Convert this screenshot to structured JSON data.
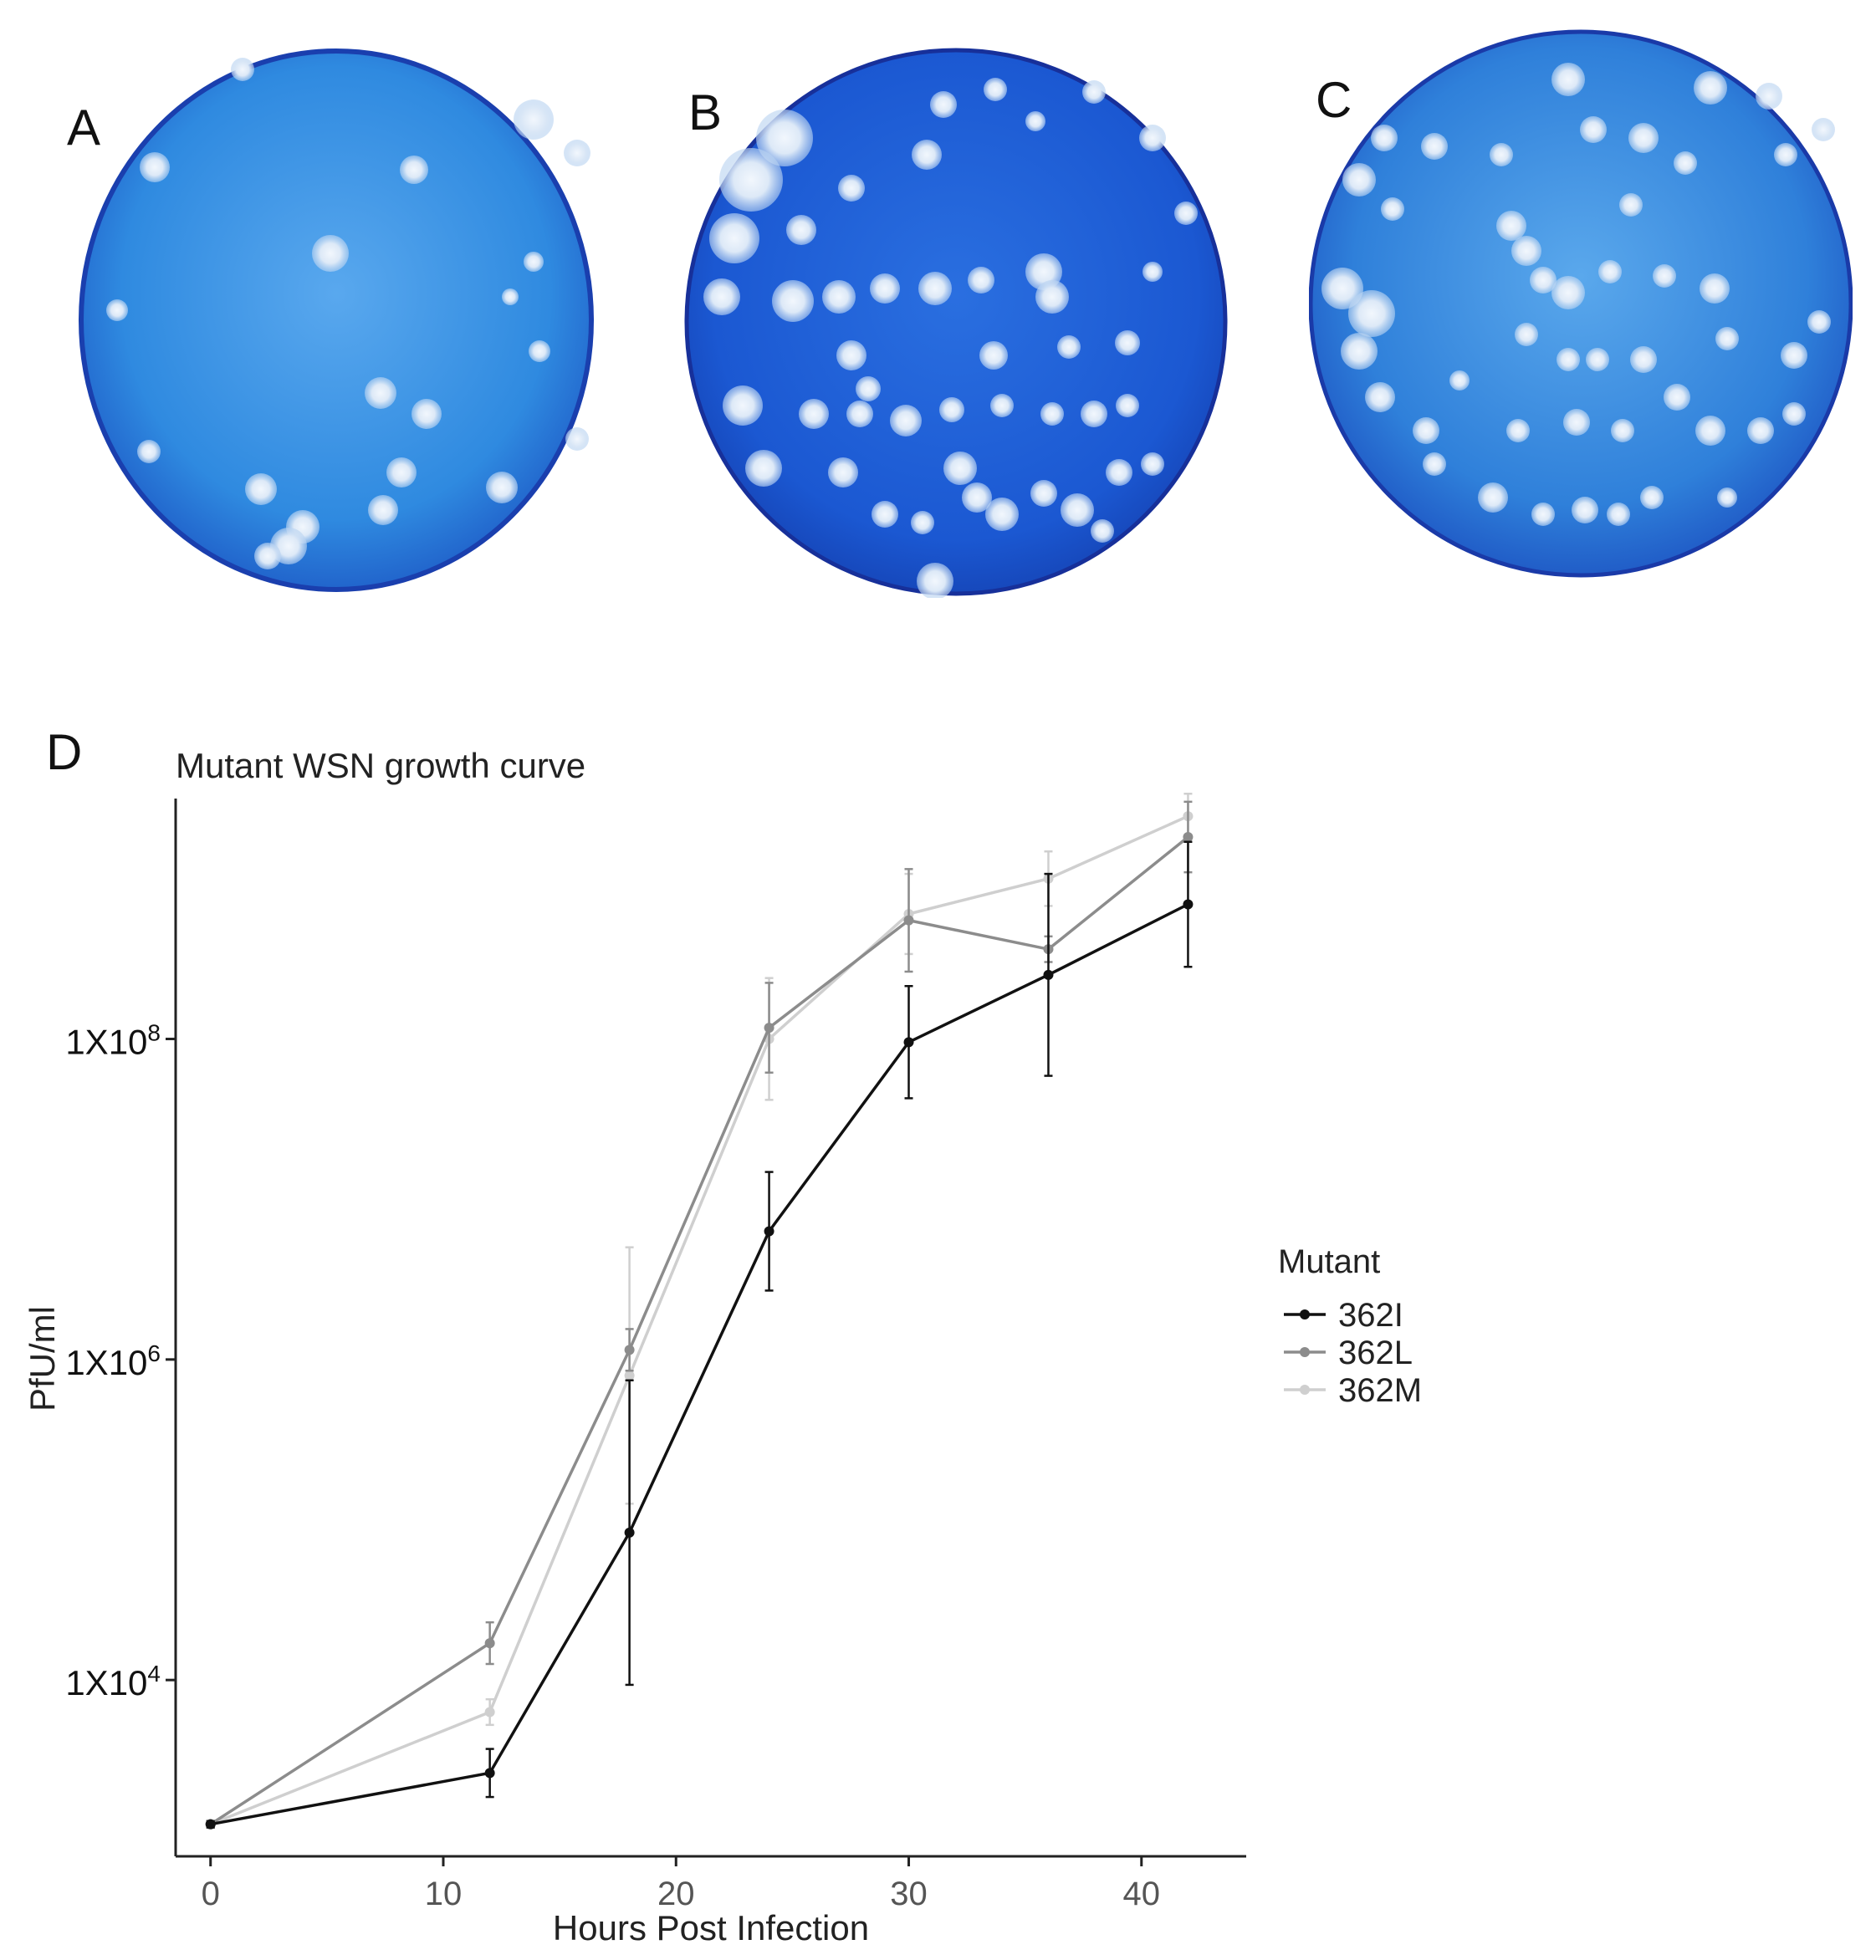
{
  "panels": {
    "a": {
      "label": "A"
    },
    "b": {
      "label": "B"
    },
    "c": {
      "label": "C"
    },
    "d": {
      "label": "D"
    }
  },
  "colors": {
    "plate_blue": "#2b7fd6",
    "plate_dark": "#1546b8",
    "plaque": "#e4eefa",
    "series_362I": "#111111",
    "series_362L": "#8c8c8c",
    "series_362M": "#cfcfcf"
  },
  "chart_data": {
    "type": "line",
    "title": "Mutant WSN growth curve",
    "xlabel": "Hours Post Infection",
    "ylabel": "PfU/ml",
    "y_scale": "log10",
    "xlim": [
      -1.5,
      44.5
    ],
    "ylim_log10": [
      2.9,
      9.5
    ],
    "x_ticks": [
      0,
      10,
      20,
      30,
      40
    ],
    "y_ticks": [
      {
        "log10": 4,
        "label_base": "1X10",
        "label_exp": "4"
      },
      {
        "log10": 6,
        "label_base": "1X10",
        "label_exp": "6"
      },
      {
        "log10": 8,
        "label_base": "1X10",
        "label_exp": "8"
      }
    ],
    "grid": false,
    "legend": {
      "title": "Mutant",
      "position": "right"
    },
    "x": [
      0,
      12,
      18,
      24,
      30,
      36,
      42
    ],
    "series": [
      {
        "name": "362I",
        "color": "#111111",
        "log10_values": [
          3.1,
          3.42,
          4.92,
          6.8,
          7.98,
          8.4,
          8.84
        ],
        "log10_err": [
          0.02,
          0.15,
          0.95,
          0.37,
          0.35,
          0.63,
          0.39
        ]
      },
      {
        "name": "362L",
        "color": "#8c8c8c",
        "log10_values": [
          3.1,
          4.23,
          6.06,
          8.07,
          8.74,
          8.56,
          9.26
        ],
        "log10_err": [
          0.02,
          0.13,
          0.13,
          0.28,
          0.32,
          0.08,
          0.22
        ]
      },
      {
        "name": "362M",
        "color": "#cfcfcf",
        "log10_values": [
          3.1,
          3.8,
          5.9,
          8.0,
          8.78,
          9.0,
          9.39
        ],
        "log10_err": [
          0.02,
          0.08,
          0.8,
          0.38,
          0.25,
          0.17,
          0.14
        ]
      }
    ]
  }
}
